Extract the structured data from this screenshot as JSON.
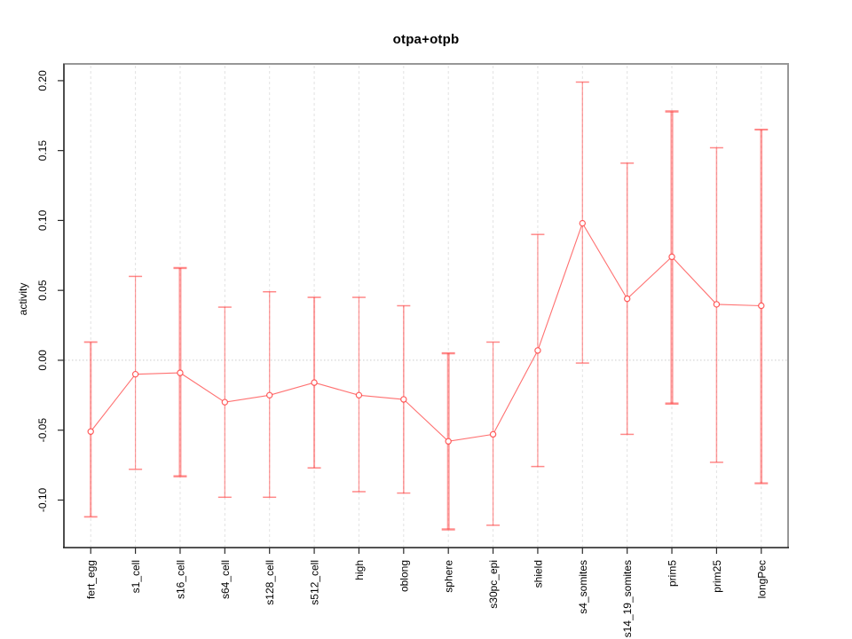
{
  "title": "otpa+otpb",
  "chart_data": {
    "type": "line",
    "title": "otpa+otpb",
    "xlabel": "",
    "ylabel": "activity",
    "legend_position": "none",
    "grid": "vertical dashed gridline per category; dotted horizontal line at y=0",
    "categories": [
      "fert_egg",
      "s1_cell",
      "s16_cell",
      "s64_cell",
      "s128_cell",
      "s512_cell",
      "high",
      "oblong",
      "sphere",
      "s30pc_epi",
      "shield",
      "s4_somites",
      "s14_19_somites",
      "prim5",
      "prim25",
      "longPec"
    ],
    "series": [
      {
        "name": "otpa+otpb",
        "values": [
          -0.051,
          -0.01,
          -0.009,
          -0.03,
          -0.025,
          -0.016,
          -0.025,
          -0.028,
          -0.058,
          -0.053,
          0.007,
          0.098,
          0.044,
          0.074,
          0.04,
          0.039
        ],
        "error_high": [
          0.013,
          0.06,
          0.066,
          0.038,
          0.049,
          0.045,
          0.045,
          0.039,
          0.005,
          0.013,
          0.09,
          0.199,
          0.141,
          0.178,
          0.152,
          0.165
        ],
        "error_low": [
          -0.112,
          -0.078,
          -0.083,
          -0.098,
          -0.098,
          -0.077,
          -0.094,
          -0.095,
          -0.121,
          -0.118,
          -0.076,
          -0.002,
          -0.053,
          -0.031,
          -0.073,
          -0.088
        ]
      }
    ],
    "yticks": [
      -0.1,
      -0.05,
      0.0,
      0.05,
      0.1,
      0.15,
      0.2
    ],
    "ytick_labels": [
      "-0.10",
      "-0.05",
      "0.00",
      "0.05",
      "0.10",
      "0.15",
      "0.20"
    ],
    "ylim": [
      -0.134,
      0.212
    ],
    "marker": "open-circle",
    "error_bar_weights": [
      2.2,
      1.2,
      3.0,
      1.3,
      1.3,
      2.0,
      1.3,
      1.6,
      3.0,
      1.3,
      1.3,
      1.3,
      1.6,
      3.2,
      1.5,
      2.6
    ],
    "colors": {
      "series": "#ff4242",
      "error_bar": "#ff3a3a",
      "grid": "#e2e2e2",
      "zero_line": "#cccccc",
      "box_light": "#979797",
      "box_dark": "#4d4d4d",
      "axis_tick": "#2b2b2b",
      "label_text": "#000000"
    }
  }
}
